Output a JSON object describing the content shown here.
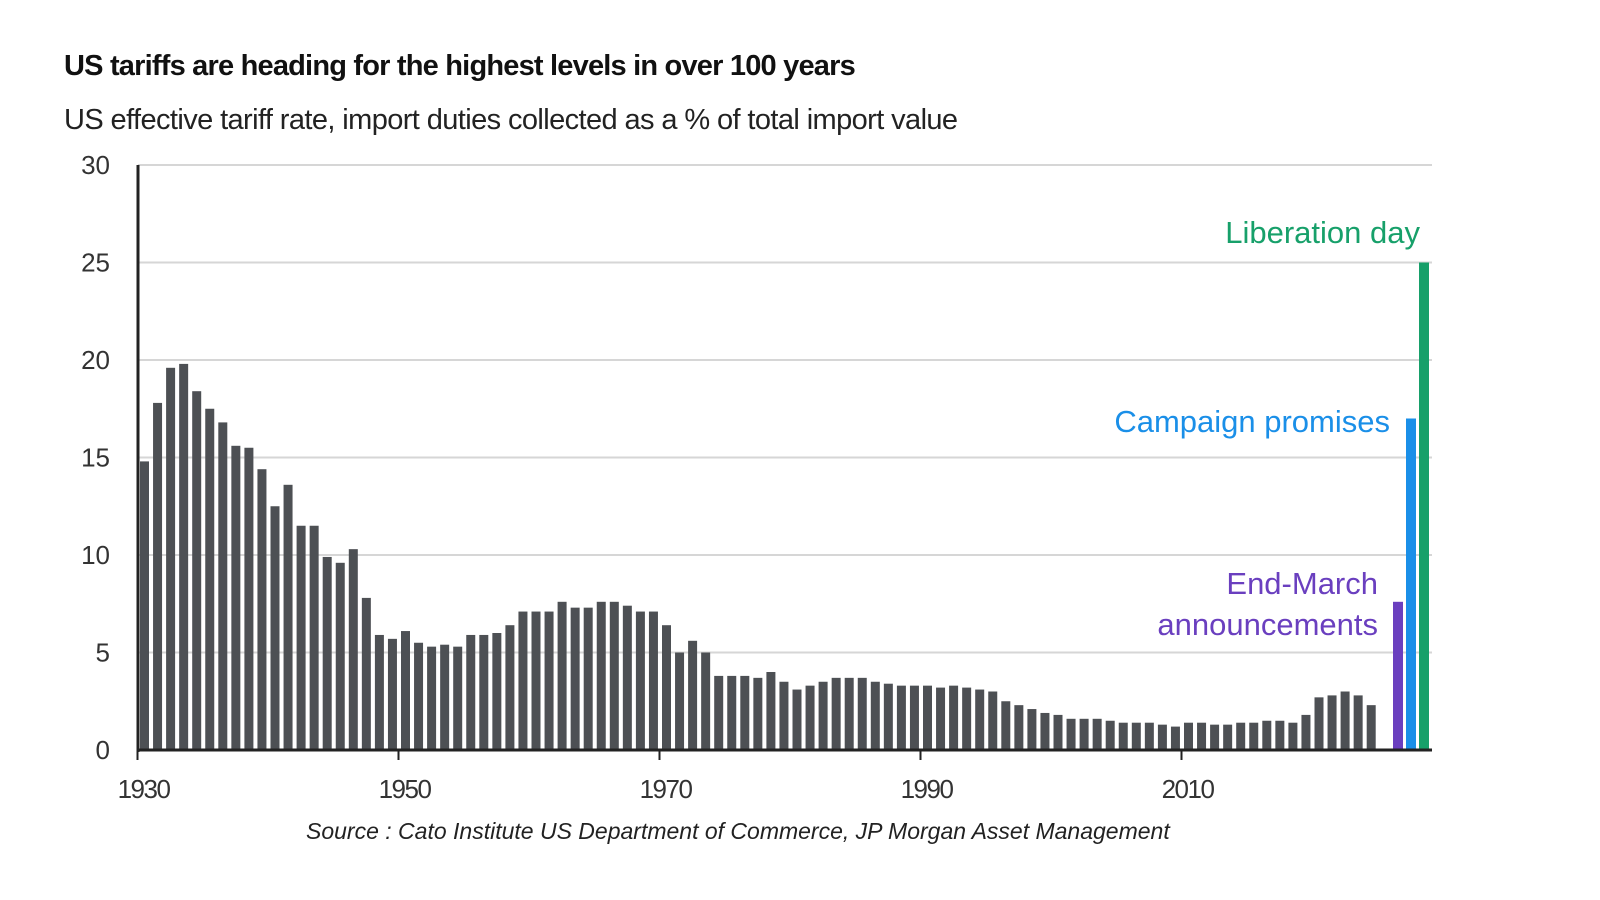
{
  "chart_data": {
    "type": "bar",
    "title": "US tariffs are heading for the highest levels in over 100 years",
    "subtitle": "US effective tariff rate, import duties collected as a % of total import value",
    "xlabel": "",
    "ylabel": "",
    "ylim": [
      0,
      30
    ],
    "yticks": [
      "0",
      "5",
      "10",
      "15",
      "20",
      "25",
      "30"
    ],
    "xticks": [
      "1930",
      "1950",
      "1970",
      "1990",
      "2010"
    ],
    "grid": true,
    "source": "Source : Cato Institute US Department of Commerce, JP Morgan Asset Management",
    "bar_color": "#4d5054",
    "historical": {
      "start_year": 1930,
      "values": [
        14.8,
        17.8,
        19.6,
        19.8,
        18.4,
        17.5,
        16.8,
        15.6,
        15.5,
        14.4,
        12.5,
        13.6,
        11.5,
        11.5,
        9.9,
        9.6,
        10.3,
        7.8,
        5.9,
        5.7,
        6.1,
        5.5,
        5.3,
        5.4,
        5.3,
        5.9,
        5.9,
        6.0,
        6.4,
        7.1,
        7.1,
        7.1,
        7.6,
        7.3,
        7.3,
        7.6,
        7.6,
        7.4,
        7.1,
        7.1,
        6.4,
        5.0,
        5.6,
        5.0,
        3.8,
        3.8,
        3.8,
        3.7,
        4.0,
        3.5,
        3.1,
        3.3,
        3.5,
        3.7,
        3.7,
        3.7,
        3.5,
        3.4,
        3.3,
        3.3,
        3.3,
        3.2,
        3.3,
        3.2,
        3.1,
        3.0,
        2.5,
        2.3,
        2.1,
        1.9,
        1.8,
        1.6,
        1.6,
        1.6,
        1.5,
        1.4,
        1.4,
        1.4,
        1.3,
        1.2,
        1.4,
        1.4,
        1.3,
        1.3,
        1.4,
        1.4,
        1.5,
        1.5,
        1.4,
        1.8,
        2.7,
        2.8,
        3.0,
        2.8,
        2.3
      ]
    },
    "scenarios": [
      {
        "name": "End-March announcements",
        "label_lines": [
          "End-March",
          "announcements"
        ],
        "value": 7.6,
        "color": "#6a3fbf"
      },
      {
        "name": "Campaign promises",
        "label_lines": [
          "Campaign promises"
        ],
        "value": 17.0,
        "color": "#1a8fe8"
      },
      {
        "name": "Liberation day",
        "label_lines": [
          "Liberation day"
        ],
        "value": 25.0,
        "color": "#17a06a"
      }
    ]
  }
}
